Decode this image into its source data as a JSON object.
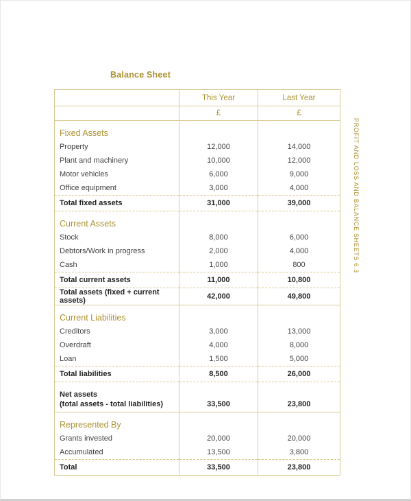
{
  "page": {
    "title": "Balance Sheet",
    "side_label": "PROFIT AND LOSS AND BALANCE SHEETS 6.3"
  },
  "colors": {
    "accent_gold": "#ab9232",
    "rule_gold": "#d9cb96",
    "body_text": "#3f3f3f",
    "total_text": "#222222"
  },
  "table": {
    "header": {
      "col_label": "",
      "this_year": "This Year",
      "last_year": "Last Year",
      "currency": "£"
    },
    "rows": [
      {
        "type": "section",
        "label": "Fixed Assets"
      },
      {
        "type": "data",
        "label": "Property",
        "y1": "12,000",
        "y2": "14,000"
      },
      {
        "type": "data",
        "label": "Plant and machinery",
        "y1": "10,000",
        "y2": "12,000"
      },
      {
        "type": "data",
        "label": "Motor vehicles",
        "y1": "6,000",
        "y2": "9,000"
      },
      {
        "type": "data",
        "label": "Office equipment",
        "y1": "3,000",
        "y2": "4,000"
      },
      {
        "type": "total",
        "label": "Total fixed assets",
        "y1": "31,000",
        "y2": "39,000"
      },
      {
        "type": "section",
        "label": "Current Assets"
      },
      {
        "type": "data",
        "label": "Stock",
        "y1": "8,000",
        "y2": "6,000"
      },
      {
        "type": "data",
        "label": "Debtors/Work in progress",
        "y1": "2,000",
        "y2": "4,000"
      },
      {
        "type": "data",
        "label": "Cash",
        "y1": "1,000",
        "y2": "800"
      },
      {
        "type": "total",
        "label": "Total current assets",
        "y1": "11,000",
        "y2": "10,800"
      },
      {
        "type": "total",
        "label": "Total assets (fixed + current assets)",
        "y1": "42,000",
        "y2": "49,800"
      },
      {
        "type": "section",
        "label": "Current Liabilities"
      },
      {
        "type": "data",
        "label": "Creditors",
        "y1": "3,000",
        "y2": "13,000"
      },
      {
        "type": "data",
        "label": "Overdraft",
        "y1": "4,000",
        "y2": "8,000"
      },
      {
        "type": "data",
        "label": "Loan",
        "y1": "1,500",
        "y2": "5,000"
      },
      {
        "type": "total",
        "label": "Total liabilities",
        "y1": "8,500",
        "y2": "26,000"
      },
      {
        "type": "net",
        "label": "Net assets",
        "label2": "(total assets - total liabilities)",
        "y1": "33,500",
        "y2": "23,800"
      },
      {
        "type": "section",
        "label": "Represented By"
      },
      {
        "type": "data",
        "label": "Grants invested",
        "y1": "20,000",
        "y2": "20,000"
      },
      {
        "type": "data",
        "label": "Accumulated",
        "y1": "13,500",
        "y2": "3,800"
      },
      {
        "type": "total",
        "label": "Total",
        "y1": "33,500",
        "y2": "23,800"
      }
    ]
  }
}
